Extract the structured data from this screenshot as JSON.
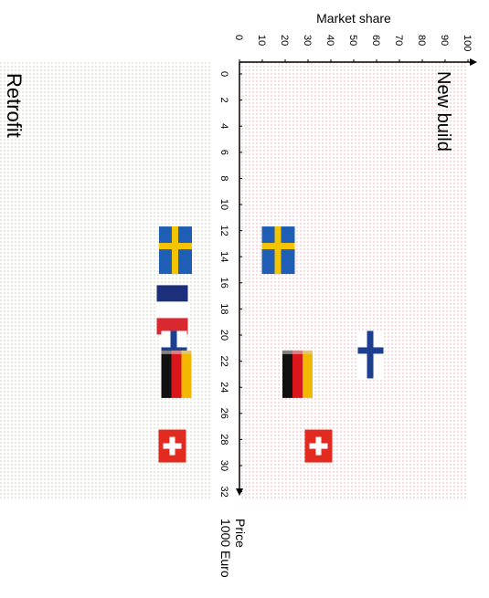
{
  "chart_data": {
    "type": "scatter",
    "title": "",
    "ylabel": "Market share",
    "xlabel": [
      "Price",
      "1000 Euro"
    ],
    "xlim": [
      0,
      33
    ],
    "ylim": [
      0,
      100
    ],
    "x_ticks": [
      0,
      2,
      4,
      6,
      8,
      10,
      12,
      14,
      16,
      18,
      20,
      22,
      24,
      26,
      28,
      30,
      32
    ],
    "y_ticks": [
      0,
      10,
      20,
      30,
      40,
      50,
      60,
      70,
      80,
      90,
      100
    ],
    "orientation": "rotated-90-clockwise",
    "panels": [
      {
        "label": "New build",
        "background": "#f3d9dc",
        "points": [
          {
            "flag": "sweden-flag",
            "x": 13.5,
            "y": 9
          },
          {
            "flag": "finland-flag",
            "x": 21.5,
            "y": 51
          },
          {
            "flag": "germany-flag",
            "x": 23,
            "y": 18
          },
          {
            "flag": "switzerland-flag",
            "x": 28.5,
            "y": 27
          }
        ]
      },
      {
        "label": "Retrofit",
        "background": "#e9ecdf",
        "points": [
          {
            "flag": "sweden-flag",
            "x": 13.5,
            "y": 8
          },
          {
            "flag": "france-flag",
            "x": 18,
            "y": 9
          },
          {
            "flag": "finland-flag",
            "x": 21.5,
            "y": 7
          },
          {
            "flag": "germany-flag",
            "x": 23,
            "y": 7
          },
          {
            "flag": "switzerland-flag",
            "x": 28.5,
            "y": 9
          }
        ]
      }
    ],
    "grid": "dotted"
  },
  "colors": {
    "new_build_dots": "#e7b6bd",
    "retrofit_dots": "#c9cfb8",
    "axis": "#000000"
  }
}
